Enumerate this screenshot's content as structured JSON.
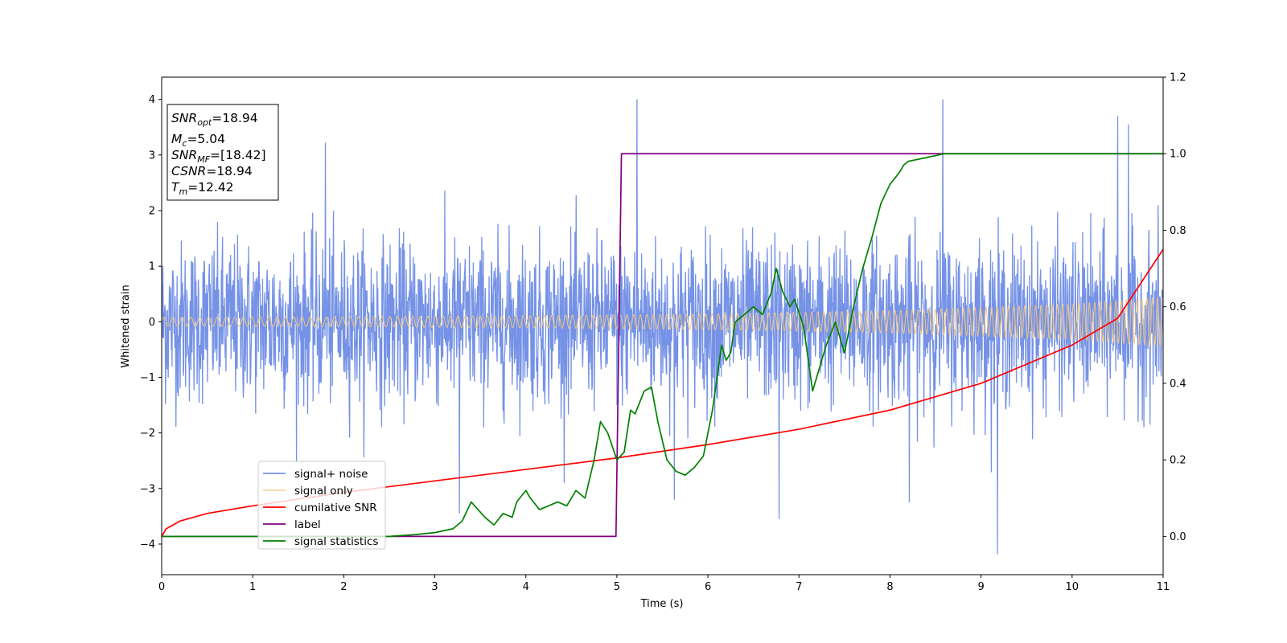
{
  "chart_data": {
    "type": "line",
    "xlabel": "Time (s)",
    "ylabel": "Whitened strain",
    "xlim": [
      0,
      11
    ],
    "ylim": [
      -4.55,
      4.4
    ],
    "y2lim": [
      -0.1,
      1.2
    ],
    "x_ticks": [
      "0",
      "1",
      "2",
      "3",
      "4",
      "5",
      "6",
      "7",
      "8",
      "9",
      "10",
      "11"
    ],
    "y_ticks": [
      "−4",
      "−3",
      "−2",
      "−1",
      "0",
      "1",
      "2",
      "3",
      "4"
    ],
    "y2_ticks": [
      "0.0",
      "0.2",
      "0.4",
      "0.6",
      "0.8",
      "1.0",
      "1.2"
    ],
    "grid": false,
    "legend_position": "lower-left",
    "info_box": {
      "snr_opt": {
        "sym": "SNR",
        "sub": "opt",
        "val": "=18.94"
      },
      "mc": {
        "sym": "M",
        "sub": "c",
        "val": "=5.04"
      },
      "snr_mf": {
        "sym": "SNR",
        "sub": "MF",
        "val": "=[18.42]"
      },
      "csnr": {
        "sym": "CSNR",
        "val": "=18.94"
      },
      "tm": {
        "sym": "T",
        "sub": "m",
        "val": "=12.42"
      }
    },
    "series": [
      {
        "name": "signal+ noise",
        "color": "#7592e6",
        "axis": "left",
        "description_values": {
          "typical_range": [
            -2.0,
            2.0
          ],
          "peaks": [
            [
              5.22,
              4.0
            ],
            [
              8.58,
              4.0
            ],
            [
              10.5,
              3.7
            ],
            [
              10.62,
              3.55
            ],
            [
              1.8,
              3.22
            ],
            [
              9.18,
              -4.18
            ],
            [
              3.27,
              -3.45
            ],
            [
              6.78,
              -3.55
            ],
            [
              8.21,
              -3.25
            ],
            [
              5.63,
              -3.2
            ]
          ]
        }
      },
      {
        "name": "signal only",
        "color": "#f5c77e",
        "axis": "left",
        "amplitude_envelope": {
          "x": [
            0,
            2,
            4,
            6,
            8,
            10,
            11
          ],
          "y": [
            0.08,
            0.09,
            0.11,
            0.14,
            0.2,
            0.32,
            0.44
          ]
        }
      },
      {
        "name": "cumilative SNR",
        "color": "#ff0000",
        "axis": "right",
        "x": [
          0,
          0.05,
          0.2,
          0.5,
          1.0,
          2.0,
          3.0,
          4.0,
          5.0,
          6.0,
          7.0,
          8.0,
          9.0,
          10.0,
          10.5,
          11.0
        ],
        "y": [
          0.0,
          0.02,
          0.04,
          0.06,
          0.08,
          0.115,
          0.145,
          0.175,
          0.205,
          0.24,
          0.28,
          0.33,
          0.4,
          0.5,
          0.57,
          0.75
        ]
      },
      {
        "name": "label",
        "color": "#800080",
        "axis": "right",
        "x": [
          0,
          4.99,
          5.05,
          11.0
        ],
        "y": [
          0.0,
          0.0,
          1.0,
          1.0
        ]
      },
      {
        "name": "signal statistics",
        "color": "#008000",
        "axis": "right",
        "x": [
          0,
          1,
          2,
          2.5,
          2.8,
          3.0,
          3.2,
          3.3,
          3.4,
          3.55,
          3.65,
          3.75,
          3.85,
          3.9,
          4.0,
          4.05,
          4.15,
          4.25,
          4.35,
          4.45,
          4.55,
          4.65,
          4.75,
          4.82,
          4.9,
          5.0,
          5.08,
          5.15,
          5.2,
          5.3,
          5.38,
          5.45,
          5.55,
          5.65,
          5.75,
          5.85,
          5.95,
          6.05,
          6.15,
          6.2,
          6.25,
          6.3,
          6.4,
          6.5,
          6.6,
          6.7,
          6.75,
          6.82,
          6.9,
          6.95,
          7.05,
          7.15,
          7.2,
          7.3,
          7.4,
          7.5,
          7.6,
          7.7,
          7.8,
          7.9,
          8.0,
          8.1,
          8.15,
          8.2,
          8.4,
          8.6,
          9.0,
          9.2,
          9.5,
          10.0,
          11.0
        ],
        "y": [
          0.0,
          0.0,
          0.0,
          0.0,
          0.005,
          0.01,
          0.02,
          0.04,
          0.09,
          0.05,
          0.03,
          0.06,
          0.05,
          0.09,
          0.12,
          0.1,
          0.07,
          0.08,
          0.09,
          0.08,
          0.12,
          0.1,
          0.2,
          0.3,
          0.27,
          0.2,
          0.22,
          0.33,
          0.32,
          0.38,
          0.39,
          0.3,
          0.2,
          0.17,
          0.16,
          0.18,
          0.21,
          0.33,
          0.5,
          0.46,
          0.48,
          0.56,
          0.58,
          0.6,
          0.58,
          0.64,
          0.7,
          0.64,
          0.6,
          0.62,
          0.55,
          0.38,
          0.42,
          0.5,
          0.56,
          0.48,
          0.6,
          0.7,
          0.78,
          0.87,
          0.92,
          0.95,
          0.97,
          0.98,
          0.99,
          1.0,
          1.0,
          1.0,
          1.0,
          1.0,
          1.0
        ]
      }
    ]
  }
}
